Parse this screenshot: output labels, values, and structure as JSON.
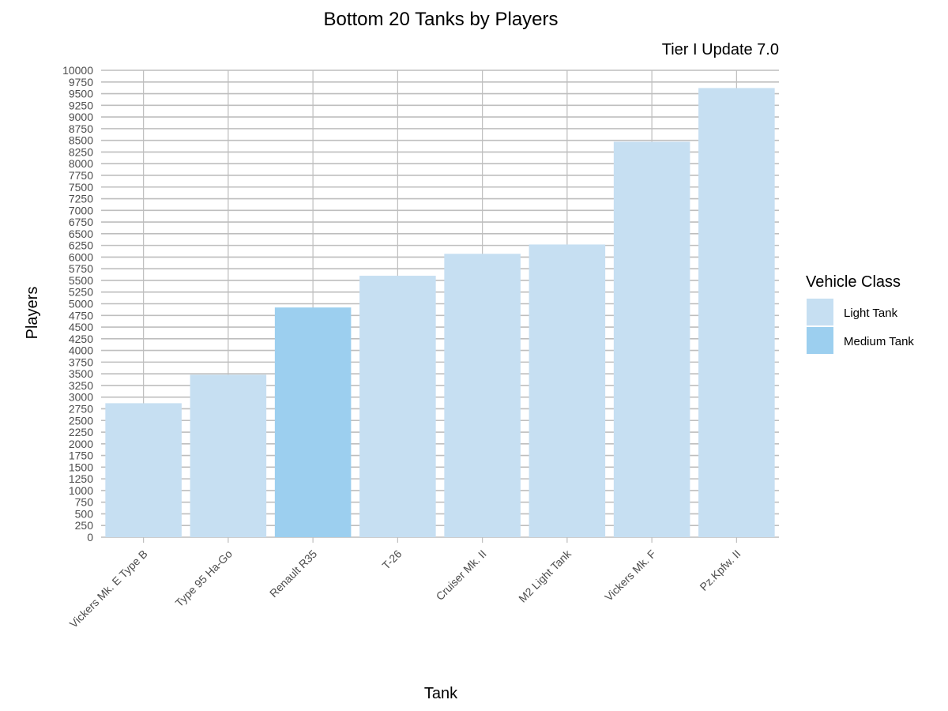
{
  "chart_data": {
    "type": "bar",
    "title": "Bottom 20 Tanks by Players",
    "subtitle": "Tier I Update 7.0",
    "xlabel": "Tank",
    "ylabel": "Players",
    "ylim": [
      0,
      10000
    ],
    "ytick_step": 250,
    "grid": true,
    "legend": {
      "title": "Vehicle Class",
      "position": "right",
      "entries": [
        {
          "label": "Light Tank",
          "color": "#c6dff2"
        },
        {
          "label": "Medium Tank",
          "color": "#9ccfef"
        }
      ]
    },
    "categories": [
      "Vickers Mk. E Type B",
      "Type 95 Ha-Go",
      "Renault R35",
      "T-26",
      "Cruiser Mk. II",
      "M2 Light Tank",
      "Vickers Mk. F",
      "Pz.Kpfw. II"
    ],
    "values": [
      2870,
      3480,
      4920,
      5600,
      6070,
      6270,
      8470,
      9620
    ],
    "vehicle_class": [
      "Light Tank",
      "Light Tank",
      "Medium Tank",
      "Light Tank",
      "Light Tank",
      "Light Tank",
      "Light Tank",
      "Light Tank"
    ]
  }
}
